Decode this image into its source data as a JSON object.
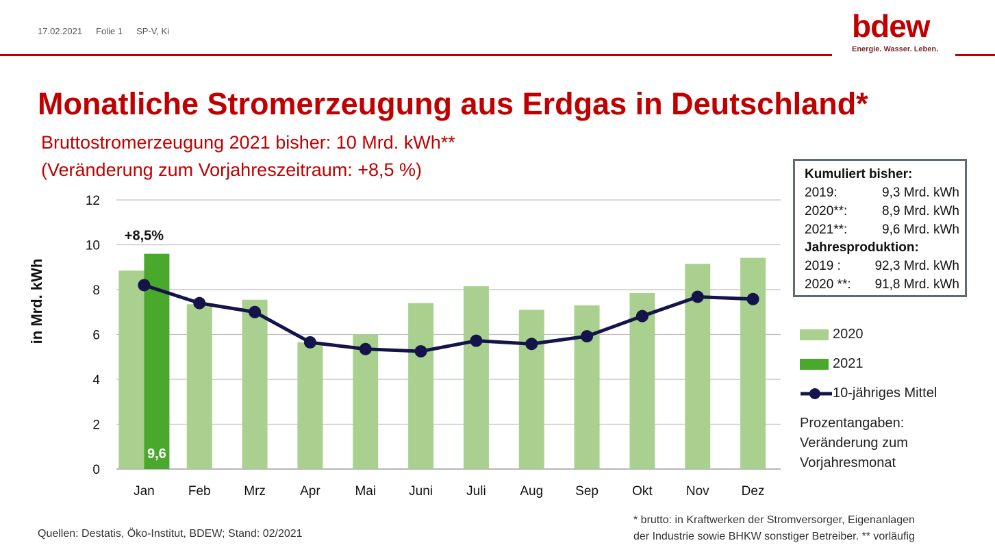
{
  "header": {
    "date": "17.02.2021",
    "slide": "Folie 1",
    "author": "SP-V, Ki"
  },
  "logo": {
    "name": "bdew",
    "tagline": "Energie. Wasser. Leben."
  },
  "title": "Monatliche Stromerzeugung aus Erdgas in Deutschland*",
  "subtitle1": "Bruttostromerzeugung 2021 bisher: 10 Mrd. kWh**",
  "subtitle2": "(Veränderung zum Vorjahreszeitraum: +8,5 %)",
  "infobox": {
    "heading1": "Kumuliert bisher:",
    "rows1": [
      {
        "k": "2019:",
        "v": "9,3 Mrd. kWh"
      },
      {
        "k": "2020**:",
        "v": "8,9 Mrd. kWh"
      },
      {
        "k": "2021**:",
        "v": "9,6 Mrd. kWh"
      }
    ],
    "heading2": "Jahresproduktion:",
    "rows2": [
      {
        "k": "2019 :",
        "v": "92,3 Mrd. kWh"
      },
      {
        "k": "2020 **:",
        "v": "91,8 Mrd. kWh"
      }
    ]
  },
  "legend": {
    "l2020": "2020",
    "l2021": "2021",
    "lmean": "10-jähriges Mittel"
  },
  "note": [
    "Prozentangaben:",
    "Veränderung zum",
    "Vorjahresmonat"
  ],
  "footer": {
    "sources": "Quellen: Destatis, Öko-Institut, BDEW; Stand: 02/2021",
    "note1": "* brutto: in Kraftwerken der Stromversorger, Eigenanlagen",
    "note2": "der Industrie sowie BHKW sonstiger Betreiber. ** vorläufig"
  },
  "colors": {
    "red": "#c00000",
    "bar2020": "#a9d08e",
    "bar2021": "#4aa82c",
    "mean": "#14144a",
    "grid": "#bfbfbf",
    "infoBorder": "#5e6b74"
  },
  "chart_data": {
    "type": "bar",
    "categories": [
      "Jan",
      "Feb",
      "Mrz",
      "Apr",
      "Mai",
      "Juni",
      "Juli",
      "Aug",
      "Sep",
      "Okt",
      "Nov",
      "Dez"
    ],
    "series": [
      {
        "name": "2020",
        "type": "bar",
        "values": [
          8.85,
          7.35,
          7.55,
          5.65,
          6.0,
          7.4,
          8.15,
          7.1,
          7.3,
          7.85,
          9.15,
          9.42
        ]
      },
      {
        "name": "2021",
        "type": "bar",
        "values": [
          9.6,
          null,
          null,
          null,
          null,
          null,
          null,
          null,
          null,
          null,
          null,
          null
        ]
      },
      {
        "name": "10-jähriges Mittel",
        "type": "line",
        "values": [
          8.2,
          7.4,
          7.0,
          5.65,
          5.35,
          5.25,
          5.72,
          5.58,
          5.92,
          6.82,
          7.68,
          7.58
        ]
      }
    ],
    "data_labels": {
      "jan_2021_value": "9,6",
      "jan_change": "+8,5%"
    },
    "ylabel": "in Mrd. kWh",
    "yticks": [
      "0",
      "2",
      "4",
      "6",
      "8",
      "10",
      "12"
    ],
    "ylim": [
      0,
      12
    ],
    "grid": true,
    "legend_position": "right"
  }
}
